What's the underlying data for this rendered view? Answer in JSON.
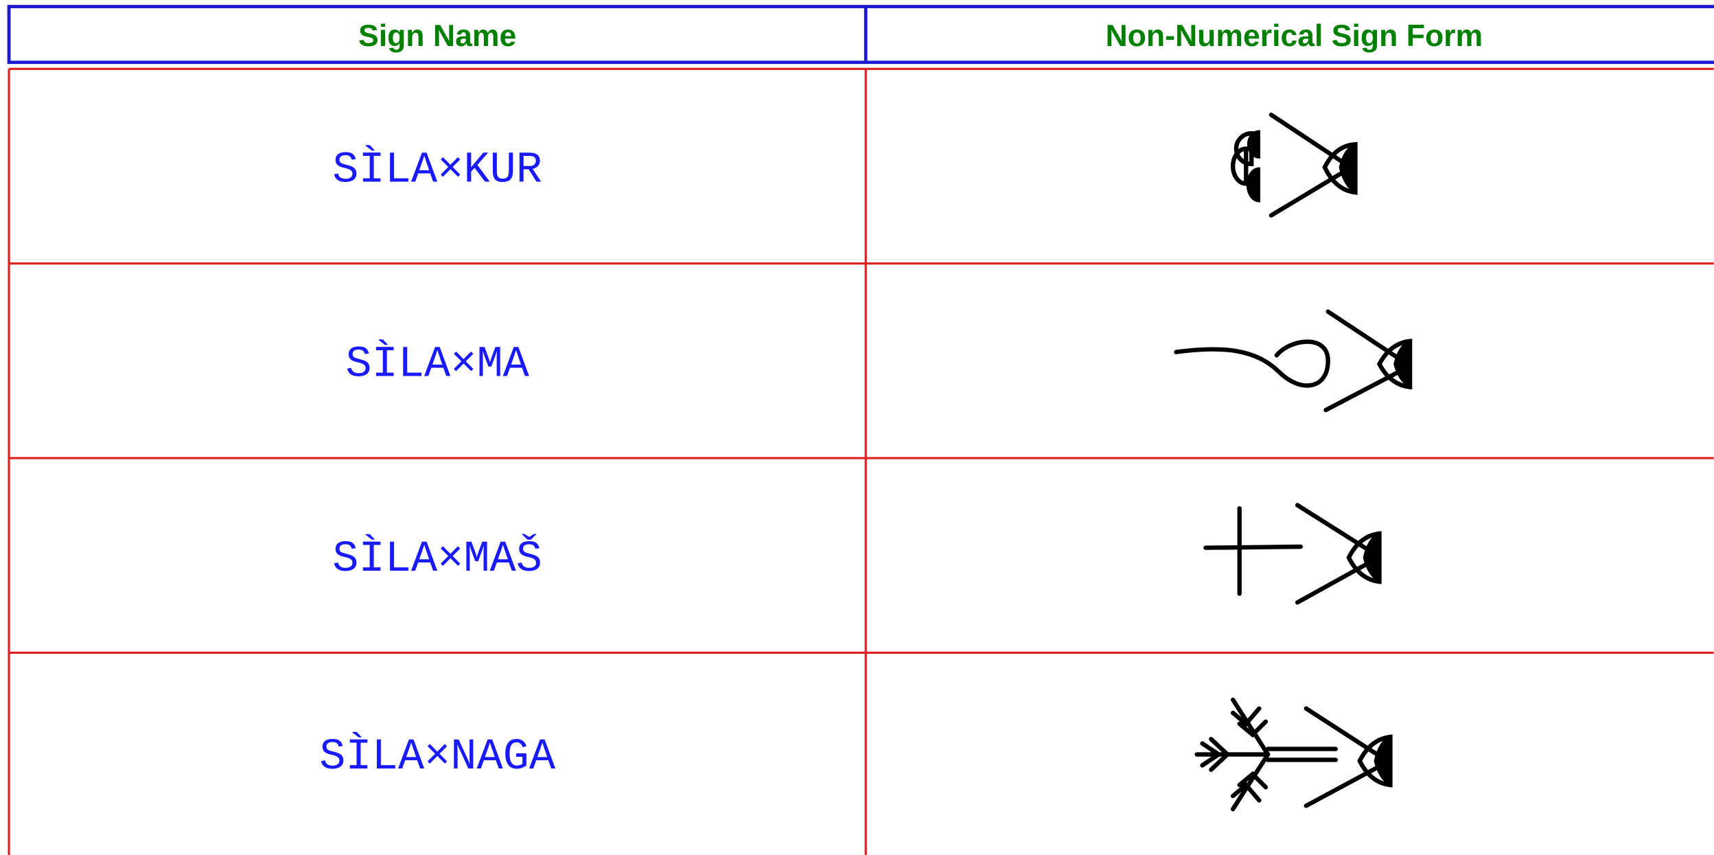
{
  "table": {
    "columns": [
      "Sign Name",
      "Non-Numerical Sign Form"
    ],
    "rows": [
      [
        "SÌLA×KUR"
      ],
      [
        "SÌLA×MA"
      ],
      [
        "SÌLA×MAŠ"
      ],
      [
        "SÌLA×NAGA"
      ]
    ]
  }
}
